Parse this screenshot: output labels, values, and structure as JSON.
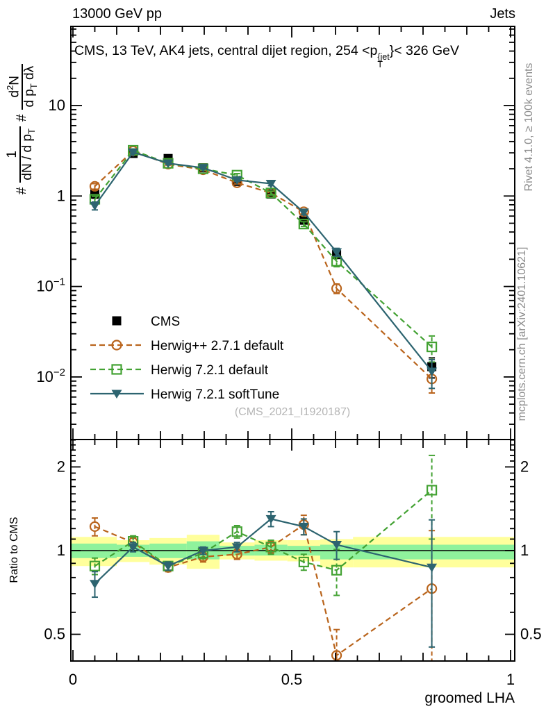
{
  "header": {
    "left": "13000 GeV pp",
    "right": "Jets"
  },
  "side_notes": {
    "rivet": "Rivet 4.1.0, ≥ 100k events",
    "mcplots": "mcplots.cern.ch [arXiv:2401.10621]"
  },
  "title": {
    "pre": "CMS, 13 TeV, AK4 jets, central dijet region, 254 <p",
    "sup": "{jet",
    "sub": "T",
    "post": "}< 326 GeV"
  },
  "ylabel_formula": {
    "hash1": "#",
    "frac1_num": "1",
    "frac1_den_a": "dN / d p",
    "frac1_den_sub": "T",
    "hash2": "#",
    "frac2_num_a": "d",
    "frac2_num_sup": "2",
    "frac2_num_b": "N",
    "frac2_den_a": "d p",
    "frac2_den_sub": "T",
    "frac2_den_b": " dλ"
  },
  "legend": {
    "items": [
      {
        "label": "CMS"
      },
      {
        "label": "Herwig++ 2.7.1 default"
      },
      {
        "label": "Herwig 7.2.1 default"
      },
      {
        "label": "Herwig 7.2.1 softTune"
      }
    ]
  },
  "colors": {
    "cms": "#000000",
    "herwigpp": "#b9641c",
    "herwig7": "#43a233",
    "softtune": "#2d6470",
    "band_yellow": "#ffff9c",
    "band_green": "#8ff29c",
    "note_gray": "#8c8c8c",
    "watermark_gray": "#b5b5b5"
  },
  "chart_data": [
    {
      "id": "main",
      "type": "line",
      "yscale": "log",
      "xlim": [
        0,
        1
      ],
      "ylim": [
        0.002,
        75
      ],
      "grid": false,
      "legend_position": "left-middle",
      "watermark": "(CMS_2021_I1920187)",
      "x": [
        0.05,
        0.1375,
        0.2175,
        0.2975,
        0.375,
        0.4525,
        0.5275,
        0.6025,
        0.82
      ],
      "yticks": [
        {
          "v": 10,
          "label": "10"
        },
        {
          "v": 1,
          "label": "1"
        },
        {
          "v": 0.1,
          "base": "10",
          "exp": "−1"
        },
        {
          "v": 0.01,
          "base": "10",
          "exp": "−2"
        }
      ],
      "series": [
        {
          "name": "CMS",
          "color": "#000000",
          "marker": "square_filled",
          "line": "none",
          "values": [
            1.05,
            2.95,
            2.6,
            2.05,
            1.45,
            1.05,
            0.54,
            0.225,
            0.013
          ],
          "rel_err": [
            0.1,
            0.05,
            0.04,
            0.04,
            0.04,
            0.05,
            0.06,
            0.09,
            0.25
          ]
        },
        {
          "name": "Herwig++ 2.7.1 default",
          "color": "#b9641c",
          "marker": "circle_open",
          "line": "dashed",
          "values": [
            1.28,
            3.15,
            2.25,
            1.95,
            1.4,
            1.08,
            0.67,
            0.095,
            0.0095
          ],
          "rel_err": [
            0.07,
            0.03,
            0.025,
            0.025,
            0.03,
            0.035,
            0.05,
            0.12,
            0.3
          ]
        },
        {
          "name": "Herwig 7.2.1 default",
          "color": "#43a233",
          "marker": "square_open",
          "line": "dashed",
          "values": [
            0.92,
            3.2,
            2.3,
            2.0,
            1.7,
            1.08,
            0.49,
            0.19,
            0.0215
          ],
          "rel_err": [
            0.08,
            0.035,
            0.03,
            0.03,
            0.04,
            0.05,
            0.06,
            0.13,
            0.32
          ]
        },
        {
          "name": "Herwig 7.2.1 softTune",
          "color": "#2d6470",
          "marker": "triangle_down_filled",
          "line": "solid",
          "values": [
            0.78,
            3.05,
            2.3,
            2.05,
            1.5,
            1.37,
            0.66,
            0.24,
            0.0115
          ],
          "rel_err": [
            0.1,
            0.035,
            0.03,
            0.025,
            0.03,
            0.05,
            0.06,
            0.1,
            0.35
          ]
        }
      ]
    },
    {
      "id": "ratio",
      "type": "line",
      "yscale": "log",
      "xlim": [
        0,
        1
      ],
      "ylim": [
        0.4,
        2.51
      ],
      "ylabel": "Ratio to CMS",
      "xlabel": "groomed LHA",
      "ref_line": 1,
      "xticks": [
        {
          "v": 0,
          "label": "0"
        },
        {
          "v": 0.5,
          "label": "0.5"
        },
        {
          "v": 1,
          "label": "1"
        }
      ],
      "yticks": [
        {
          "v": 2,
          "label": "2"
        },
        {
          "v": 1,
          "label": "1"
        },
        {
          "v": 0.5,
          "label": "0.5"
        }
      ],
      "x": [
        0.05,
        0.1375,
        0.2175,
        0.2975,
        0.375,
        0.4525,
        0.5275,
        0.6025,
        0.82
      ],
      "band_bins": [
        [
          0,
          0.1
        ],
        [
          0.1,
          0.175
        ],
        [
          0.175,
          0.26
        ],
        [
          0.26,
          0.335
        ],
        [
          0.335,
          0.415
        ],
        [
          0.415,
          0.49
        ],
        [
          0.49,
          0.565
        ],
        [
          0.565,
          0.64
        ],
        [
          0.64,
          1.0
        ]
      ],
      "band_yellow": [
        [
          0.88,
          1.12
        ],
        [
          0.91,
          1.09
        ],
        [
          0.89,
          1.11
        ],
        [
          0.86,
          1.14
        ],
        [
          0.93,
          1.07
        ],
        [
          0.92,
          1.09
        ],
        [
          0.915,
          1.09
        ],
        [
          0.87,
          1.1
        ],
        [
          0.87,
          1.12
        ]
      ],
      "band_green": [
        [
          0.94,
          1.06
        ],
        [
          0.95,
          1.05
        ],
        [
          0.94,
          1.06
        ],
        [
          0.93,
          1.08
        ],
        [
          0.96,
          1.04
        ],
        [
          0.96,
          1.05
        ],
        [
          0.96,
          1.04
        ],
        [
          0.93,
          1.05
        ],
        [
          0.93,
          1.05
        ]
      ],
      "series": [
        {
          "name": "Herwig++ 2.7.1 default",
          "color": "#b9641c",
          "marker": "circle_open",
          "line": "dashed",
          "values": [
            1.22,
            1.07,
            0.87,
            0.95,
            0.97,
            1.03,
            1.24,
            0.42,
            0.73
          ],
          "err": [
            0.09,
            0.04,
            0.03,
            0.04,
            0.04,
            0.05,
            0.1,
            0.1,
            0.45
          ]
        },
        {
          "name": "Herwig 7.2.1 default",
          "color": "#43a233",
          "marker": "square_open",
          "line": "dashed",
          "values": [
            0.88,
            1.08,
            0.88,
            0.98,
            1.17,
            1.03,
            0.91,
            0.85,
            1.65
          ],
          "err": [
            0.06,
            0.05,
            0.03,
            0.045,
            0.06,
            0.06,
            0.06,
            0.16,
            0.55
          ]
        },
        {
          "name": "Herwig 7.2.1 softTune",
          "color": "#2d6470",
          "marker": "triangle_down_filled",
          "line": "solid",
          "values": [
            0.76,
            1.03,
            0.88,
            1.0,
            1.03,
            1.3,
            1.22,
            1.05,
            0.87
          ],
          "err": [
            0.08,
            0.04,
            0.03,
            0.03,
            0.04,
            0.08,
            0.08,
            0.12,
            0.42
          ]
        }
      ]
    }
  ]
}
